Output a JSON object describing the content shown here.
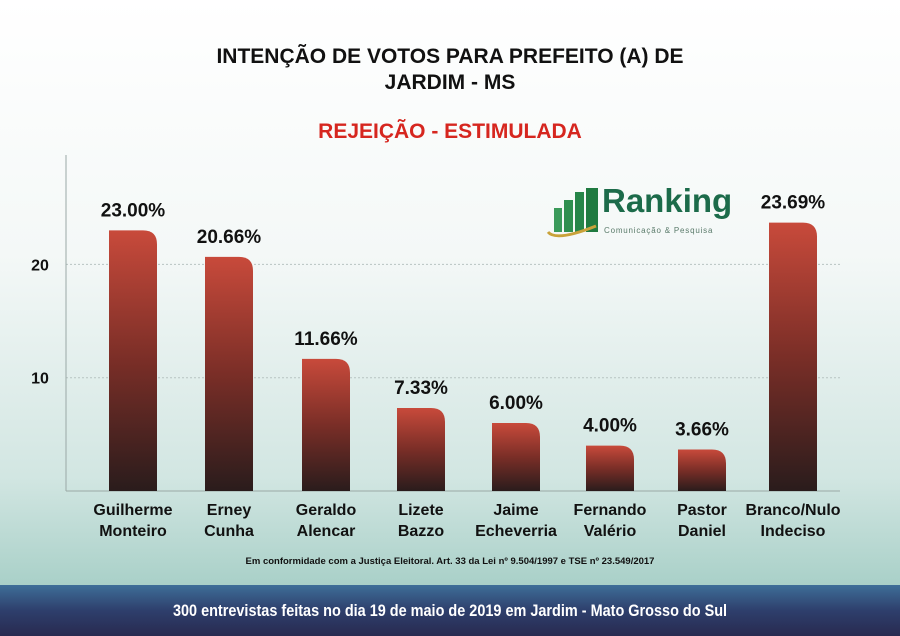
{
  "header": {
    "title_line1": "INTENÇÃO DE VOTOS PARA PREFEITO (A) DE",
    "title_line2": "JARDIM - MS",
    "subtitle": "REJEIÇÃO - ESTIMULADA"
  },
  "logo": {
    "name": "Ranking",
    "tagline": "Comunicação & Pesquisa"
  },
  "note": "Em conformidade com a Justiça Eleitoral. Art. 33 da Lei nº 9.504/1997 e TSE nº 23.549/2017",
  "footer": "300 entrevistas feitas no dia 19 de maio de 2019 em Jardim - Mato Grosso do Sul",
  "chart_data": {
    "type": "bar",
    "title": "REJEIÇÃO - ESTIMULADA",
    "categories": [
      [
        "Guilherme",
        "Monteiro"
      ],
      [
        "Erney",
        "Cunha"
      ],
      [
        "Geraldo",
        "Alencar"
      ],
      [
        "Lizete",
        "Bazzo"
      ],
      [
        "Jaime",
        "Echeverria"
      ],
      [
        "Fernando",
        "Valério"
      ],
      [
        "Pastor",
        "Daniel"
      ],
      [
        "Branco/Nulo",
        "Indeciso"
      ]
    ],
    "values": [
      23.0,
      20.66,
      11.66,
      7.33,
      6.0,
      4.0,
      3.66,
      23.69
    ],
    "data_labels": [
      "23.00%",
      "20.66%",
      "11.66%",
      "7.33%",
      "6.00%",
      "4.00%",
      "3.66%",
      "23.69%"
    ],
    "yticks": [
      10,
      20
    ],
    "ylim": [
      0,
      29
    ],
    "grid": true,
    "bar_color_top": "#c4483a",
    "bar_color_bottom": "#2a1a1a"
  }
}
